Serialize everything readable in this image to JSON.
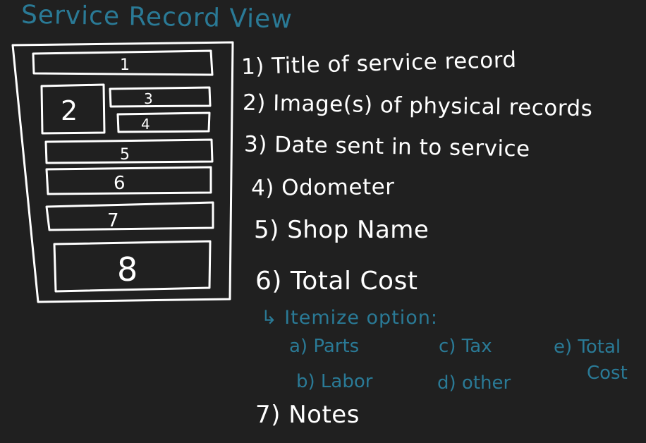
{
  "title": "Service Record View",
  "wireframe_boxes": [
    {
      "num": "1"
    },
    {
      "num": "2"
    },
    {
      "num": "3"
    },
    {
      "num": "4"
    },
    {
      "num": "5"
    },
    {
      "num": "6"
    },
    {
      "num": "7"
    },
    {
      "num": "8"
    }
  ],
  "legend": [
    "1) Title of service record",
    "2) Image(s) of physical records",
    "3) Date sent in to service",
    "4) Odometer",
    "5) Shop Name",
    "6) Total Cost",
    "7) Notes"
  ],
  "itemize": {
    "heading": "↳ Itemize option:",
    "options": [
      "a) Parts",
      "b) Labor",
      "c) Tax",
      "d) other",
      "e) Total",
      "Cost"
    ]
  },
  "colors": {
    "background": "#202020",
    "ink": "#ffffff",
    "accent": "#2a7a96"
  }
}
